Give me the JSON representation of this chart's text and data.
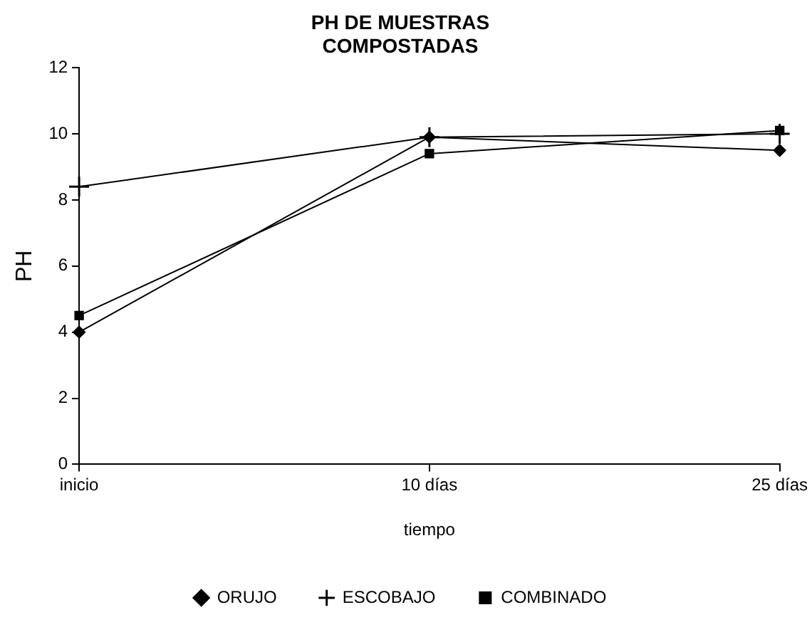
{
  "chart_data": {
    "type": "line",
    "title": "PH DE MUESTRAS COMPOSTADAS",
    "xlabel": "tiempo",
    "ylabel": "PH",
    "categories": [
      "inicio",
      "10 días",
      "25 días"
    ],
    "series": [
      {
        "name": "ORUJO",
        "color": "#000000",
        "marker": "diamond",
        "values": [
          4.0,
          9.9,
          9.5
        ]
      },
      {
        "name": "ESCOBAJO",
        "color": "#000000",
        "marker": "cross",
        "values": [
          8.4,
          9.9,
          10.0
        ]
      },
      {
        "name": "COMBINADO",
        "color": "#000000",
        "marker": "square",
        "values": [
          4.5,
          9.4,
          10.1
        ]
      }
    ],
    "ylim": [
      0,
      12
    ],
    "yticks": [
      0,
      2,
      4,
      6,
      8,
      10,
      12
    ],
    "grid": false,
    "legend": "bottom"
  }
}
